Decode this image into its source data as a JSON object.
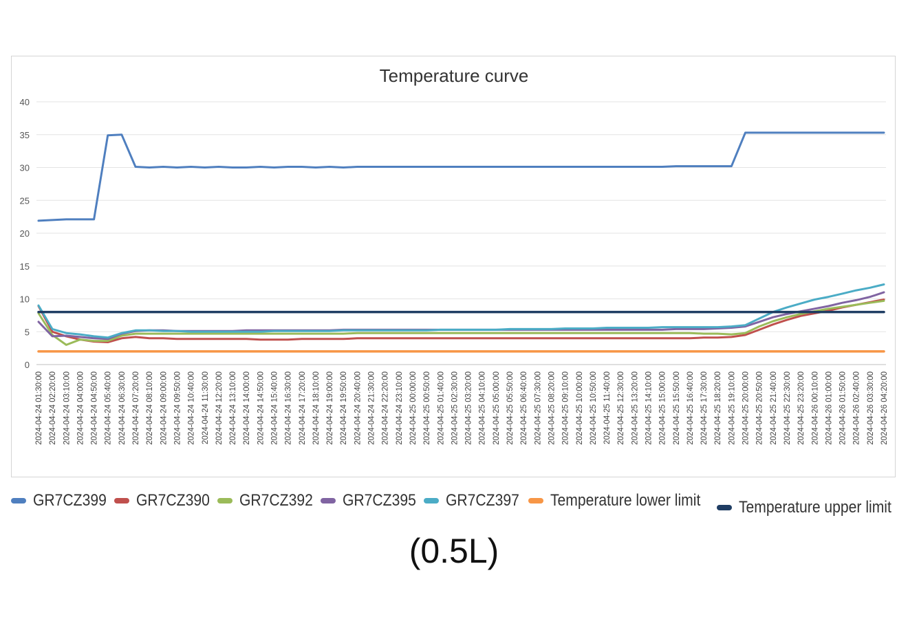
{
  "caption": "(0.5L)",
  "chart_data": {
    "type": "line",
    "title": "Temperature curve",
    "xlabel": "",
    "ylabel": "",
    "ylim": [
      0,
      40
    ],
    "yticks": [
      0,
      5,
      10,
      15,
      20,
      25,
      30,
      35,
      40
    ],
    "grid": true,
    "legend_position": "bottom",
    "x_tick_labels": [
      "2024-04-24 01:30:00",
      "2024-04-24 02:20:00",
      "2024-04-24 03:10:00",
      "2024-04-24 04:00:00",
      "2024-04-24 04:50:00",
      "2024-04-24 05:40:00",
      "2024-04-24 06:30:00",
      "2024-04-24 07:20:00",
      "2024-04-24 08:10:00",
      "2024-04-24 09:00:00",
      "2024-04-24 09:50:00",
      "2024-04-24 10:40:00",
      "2024-04-24 11:30:00",
      "2024-04-24 12:20:00",
      "2024-04-24 13:10:00",
      "2024-04-24 14:00:00",
      "2024-04-24 14:50:00",
      "2024-04-24 15:40:00",
      "2024-04-24 16:30:00",
      "2024-04-24 17:20:00",
      "2024-04-24 18:10:00",
      "2024-04-24 19:00:00",
      "2024-04-24 19:50:00",
      "2024-04-24 20:40:00",
      "2024-04-24 21:30:00",
      "2024-04-24 22:20:00",
      "2024-04-24 23:10:00",
      "2024-04-25 00:00:00",
      "2024-04-25 00:50:00",
      "2024-04-25 01:40:00",
      "2024-04-25 02:30:00",
      "2024-04-25 03:20:00",
      "2024-04-25 04:10:00",
      "2024-04-25 05:00:00",
      "2024-04-25 05:50:00",
      "2024-04-25 06:40:00",
      "2024-04-25 07:30:00",
      "2024-04-25 08:20:00",
      "2024-04-25 09:10:00",
      "2024-04-25 10:00:00",
      "2024-04-25 10:50:00",
      "2024-04-25 11:40:00",
      "2024-04-25 12:30:00",
      "2024-04-25 13:20:00",
      "2024-04-25 14:10:00",
      "2024-04-25 15:00:00",
      "2024-04-25 15:50:00",
      "2024-04-25 16:40:00",
      "2024-04-25 17:30:00",
      "2024-04-25 18:20:00",
      "2024-04-25 19:10:00",
      "2024-04-25 20:00:00",
      "2024-04-25 20:50:00",
      "2024-04-25 21:40:00",
      "2024-04-25 22:30:00",
      "2024-04-25 23:20:00",
      "2024-04-26 00:10:00",
      "2024-04-26 01:00:00",
      "2024-04-26 01:50:00",
      "2024-04-26 02:40:00",
      "2024-04-26 03:30:00",
      "2024-04-26 04:20:00"
    ],
    "x": [
      "2024-04-24 01:30:00",
      "2024-04-24 02:20:00",
      "2024-04-24 03:10:00",
      "2024-04-24 04:00:00",
      "2024-04-24 04:50:00",
      "2024-04-24 05:40:00",
      "2024-04-24 06:30:00",
      "2024-04-24 07:20:00",
      "2024-04-24 08:10:00",
      "2024-04-24 09:00:00",
      "2024-04-24 09:50:00",
      "2024-04-24 10:40:00",
      "2024-04-24 11:30:00",
      "2024-04-24 12:20:00",
      "2024-04-24 13:10:00",
      "2024-04-24 14:00:00",
      "2024-04-24 14:50:00",
      "2024-04-24 15:40:00",
      "2024-04-24 16:30:00",
      "2024-04-24 17:20:00",
      "2024-04-24 18:10:00",
      "2024-04-24 19:00:00",
      "2024-04-24 19:50:00",
      "2024-04-24 20:40:00",
      "2024-04-24 21:30:00",
      "2024-04-24 22:20:00",
      "2024-04-24 23:10:00",
      "2024-04-25 00:00:00",
      "2024-04-25 00:50:00",
      "2024-04-25 01:40:00",
      "2024-04-25 02:30:00",
      "2024-04-25 03:20:00",
      "2024-04-25 04:10:00",
      "2024-04-25 05:00:00",
      "2024-04-25 05:50:00",
      "2024-04-25 06:40:00",
      "2024-04-25 07:30:00",
      "2024-04-25 08:20:00",
      "2024-04-25 09:10:00",
      "2024-04-25 10:00:00",
      "2024-04-25 10:50:00",
      "2024-04-25 11:40:00",
      "2024-04-25 12:30:00",
      "2024-04-25 13:20:00",
      "2024-04-25 14:10:00",
      "2024-04-25 15:00:00",
      "2024-04-25 15:50:00",
      "2024-04-25 16:40:00",
      "2024-04-25 17:30:00",
      "2024-04-25 18:20:00",
      "2024-04-25 19:10:00",
      "2024-04-25 20:00:00",
      "2024-04-25 20:50:00",
      "2024-04-25 21:40:00",
      "2024-04-25 22:30:00",
      "2024-04-25 23:20:00",
      "2024-04-26 00:10:00",
      "2024-04-26 01:00:00",
      "2024-04-26 01:50:00",
      "2024-04-26 02:40:00",
      "2024-04-26 03:30:00",
      "2024-04-26 04:20:00"
    ],
    "series": [
      {
        "name": "GR7CZ399",
        "color": "#4f7fbf",
        "values": [
          21.9,
          22.0,
          22.1,
          22.1,
          22.1,
          34.9,
          35.0,
          30.1,
          30.0,
          30.1,
          30.0,
          30.1,
          30.0,
          30.1,
          30.0,
          30.0,
          30.1,
          30.0,
          30.1,
          30.1,
          30.0,
          30.1,
          30.0,
          30.1,
          30.1,
          30.1,
          30.1,
          30.1,
          30.1,
          30.1,
          30.1,
          30.1,
          30.1,
          30.1,
          30.1,
          30.1,
          30.1,
          30.1,
          30.1,
          30.1,
          30.1,
          30.1,
          30.1,
          30.1,
          30.1,
          30.1,
          30.2,
          30.2,
          30.2,
          30.2,
          30.2,
          35.3,
          35.3,
          35.3,
          35.3,
          35.3,
          35.3,
          35.3,
          35.3,
          35.3,
          35.3,
          35.3
        ]
      },
      {
        "name": "GR7CZ390",
        "color": "#c0504d",
        "values": [
          8.9,
          5.0,
          4.3,
          3.8,
          3.5,
          3.4,
          4.0,
          4.2,
          4.0,
          4.0,
          3.9,
          3.9,
          3.9,
          3.9,
          3.9,
          3.9,
          3.8,
          3.8,
          3.8,
          3.9,
          3.9,
          3.9,
          3.9,
          4.0,
          4.0,
          4.0,
          4.0,
          4.0,
          4.0,
          4.0,
          4.0,
          4.0,
          4.0,
          4.0,
          4.0,
          4.0,
          4.0,
          4.0,
          4.0,
          4.0,
          4.0,
          4.0,
          4.0,
          4.0,
          4.0,
          4.0,
          4.0,
          4.0,
          4.1,
          4.1,
          4.2,
          4.5,
          5.3,
          6.1,
          6.8,
          7.4,
          7.8,
          8.2,
          8.7,
          9.1,
          9.5,
          9.9
        ]
      },
      {
        "name": "GR7CZ392",
        "color": "#9bbb59",
        "values": [
          7.8,
          4.5,
          3.0,
          3.8,
          3.6,
          3.6,
          4.4,
          4.7,
          4.7,
          4.7,
          4.7,
          4.7,
          4.7,
          4.7,
          4.7,
          4.7,
          4.7,
          4.7,
          4.7,
          4.7,
          4.7,
          4.7,
          4.7,
          4.8,
          4.8,
          4.8,
          4.8,
          4.8,
          4.8,
          4.8,
          4.8,
          4.8,
          4.8,
          4.8,
          4.8,
          4.8,
          4.8,
          4.8,
          4.8,
          4.8,
          4.8,
          4.8,
          4.8,
          4.8,
          4.8,
          4.8,
          4.8,
          4.8,
          4.7,
          4.7,
          4.6,
          4.8,
          5.8,
          6.6,
          7.2,
          7.7,
          8.1,
          8.5,
          8.8,
          9.1,
          9.4,
          9.7
        ]
      },
      {
        "name": "GR7CZ395",
        "color": "#8064a2",
        "values": [
          6.5,
          4.3,
          4.4,
          4.2,
          4.0,
          3.9,
          4.7,
          5.1,
          5.2,
          5.2,
          5.1,
          5.1,
          5.1,
          5.1,
          5.1,
          5.2,
          5.2,
          5.2,
          5.2,
          5.2,
          5.2,
          5.2,
          5.3,
          5.3,
          5.3,
          5.3,
          5.3,
          5.3,
          5.3,
          5.3,
          5.3,
          5.3,
          5.3,
          5.3,
          5.3,
          5.3,
          5.3,
          5.3,
          5.3,
          5.3,
          5.3,
          5.3,
          5.3,
          5.3,
          5.3,
          5.3,
          5.4,
          5.4,
          5.4,
          5.5,
          5.6,
          5.8,
          6.5,
          7.2,
          7.7,
          8.1,
          8.5,
          8.9,
          9.4,
          9.8,
          10.3,
          11.0
        ]
      },
      {
        "name": "GR7CZ397",
        "color": "#4bacc6",
        "values": [
          9.0,
          5.4,
          4.8,
          4.6,
          4.3,
          4.1,
          4.8,
          5.2,
          5.2,
          5.1,
          5.1,
          5.0,
          5.0,
          5.0,
          5.0,
          5.0,
          5.0,
          5.1,
          5.1,
          5.1,
          5.1,
          5.1,
          5.2,
          5.2,
          5.2,
          5.2,
          5.2,
          5.2,
          5.2,
          5.3,
          5.3,
          5.3,
          5.3,
          5.3,
          5.4,
          5.4,
          5.4,
          5.4,
          5.5,
          5.5,
          5.5,
          5.6,
          5.6,
          5.6,
          5.6,
          5.7,
          5.7,
          5.7,
          5.7,
          5.7,
          5.8,
          6.0,
          7.0,
          8.0,
          8.7,
          9.3,
          9.9,
          10.3,
          10.8,
          11.3,
          11.7,
          12.2
        ]
      },
      {
        "name": "Temperature lower limit",
        "color": "#f79646",
        "values": [
          2,
          2,
          2,
          2,
          2,
          2,
          2,
          2,
          2,
          2,
          2,
          2,
          2,
          2,
          2,
          2,
          2,
          2,
          2,
          2,
          2,
          2,
          2,
          2,
          2,
          2,
          2,
          2,
          2,
          2,
          2,
          2,
          2,
          2,
          2,
          2,
          2,
          2,
          2,
          2,
          2,
          2,
          2,
          2,
          2,
          2,
          2,
          2,
          2,
          2,
          2,
          2,
          2,
          2,
          2,
          2,
          2,
          2,
          2,
          2,
          2,
          2
        ]
      },
      {
        "name": "Temperature upper limit",
        "color": "#1f3d63",
        "values": [
          8,
          8,
          8,
          8,
          8,
          8,
          8,
          8,
          8,
          8,
          8,
          8,
          8,
          8,
          8,
          8,
          8,
          8,
          8,
          8,
          8,
          8,
          8,
          8,
          8,
          8,
          8,
          8,
          8,
          8,
          8,
          8,
          8,
          8,
          8,
          8,
          8,
          8,
          8,
          8,
          8,
          8,
          8,
          8,
          8,
          8,
          8,
          8,
          8,
          8,
          8,
          8,
          8,
          8,
          8,
          8,
          8,
          8,
          8,
          8,
          8,
          8
        ]
      }
    ]
  }
}
